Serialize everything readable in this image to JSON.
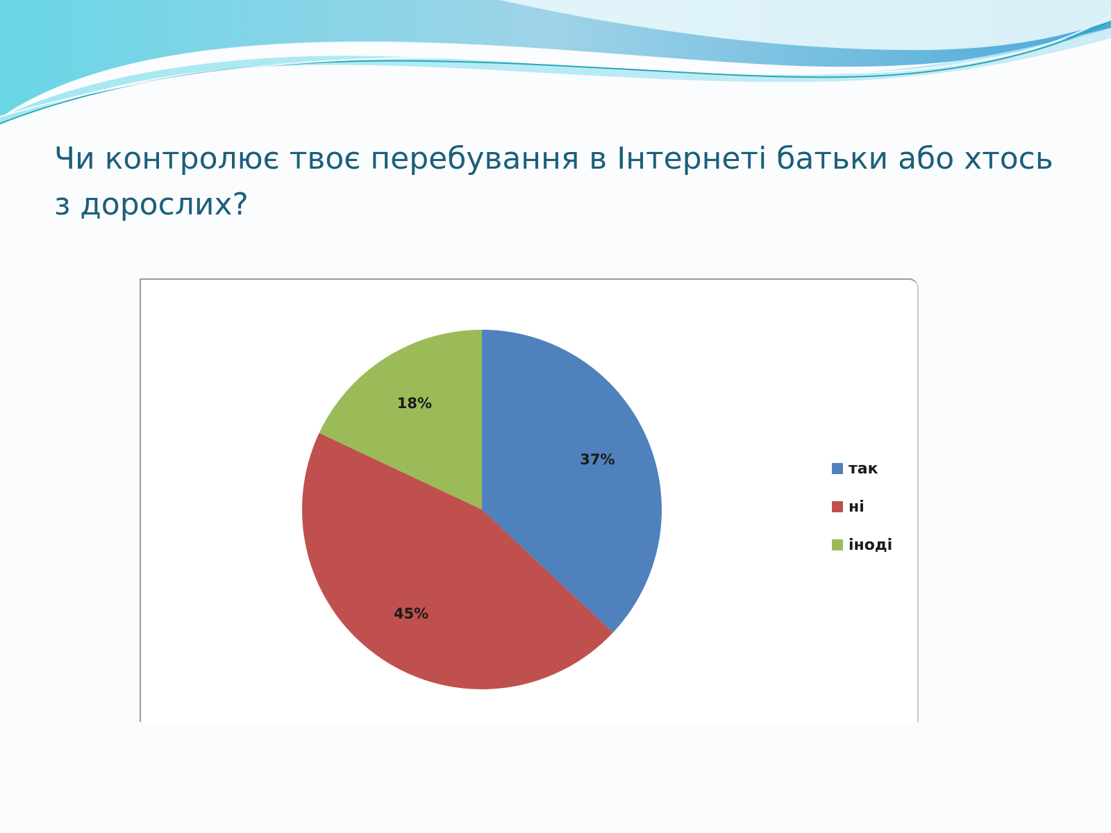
{
  "slide": {
    "title": "Чи контролює твоє перебування в Інтернеті батьки або хтось з дорослих?"
  },
  "chart_data": {
    "type": "pie",
    "title": "",
    "categories": [
      "так",
      "ні",
      "іноді"
    ],
    "values": [
      37,
      45,
      18
    ],
    "labels": [
      "37%",
      "45%",
      "18%"
    ],
    "colors": [
      "#4f81bd",
      "#c0504d",
      "#9bbb59"
    ],
    "start": "12 o'clock, clockwise",
    "legend": "right"
  }
}
